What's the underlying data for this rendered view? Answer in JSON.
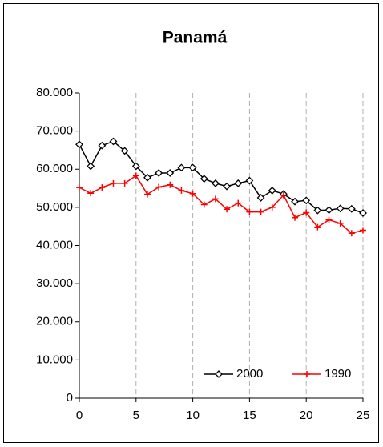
{
  "chart_data": {
    "type": "line",
    "title": "Panamá",
    "x": [
      0,
      1,
      2,
      3,
      4,
      5,
      6,
      7,
      8,
      9,
      10,
      11,
      12,
      13,
      14,
      15,
      16,
      17,
      18,
      19,
      20,
      21,
      22,
      23,
      24,
      25
    ],
    "series": [
      {
        "name": "2000",
        "color": "#000000",
        "marker": "diamond",
        "values": [
          66500,
          60800,
          66200,
          67300,
          64800,
          60800,
          57800,
          59000,
          59000,
          60400,
          60400,
          57500,
          56300,
          55500,
          56300,
          57000,
          52500,
          54400,
          53500,
          51500,
          51800,
          49200,
          49300,
          49700,
          49600,
          48500
        ]
      },
      {
        "name": "1990",
        "color": "#ff0000",
        "marker": "plus",
        "values": [
          55200,
          53700,
          55200,
          56300,
          56300,
          58300,
          53400,
          55300,
          55900,
          54400,
          53600,
          50700,
          52200,
          49500,
          51100,
          48800,
          48800,
          50000,
          53200,
          47300,
          48600,
          44800,
          46700,
          45800,
          43200,
          44000
        ]
      }
    ],
    "xlim": [
      0,
      25
    ],
    "xticks": [
      0,
      5,
      10,
      15,
      20,
      25
    ],
    "ylim": [
      0,
      80000
    ],
    "yticks": [
      0,
      {
        "value": 10000,
        "label": "10.000"
      },
      {
        "value": 20000,
        "label": "20.000"
      },
      {
        "value": 30000,
        "label": "30.000"
      },
      {
        "value": 40000,
        "label": "40.000"
      },
      {
        "value": 50000,
        "label": "50.000"
      },
      {
        "value": 60000,
        "label": "60.000"
      },
      {
        "value": 70000,
        "label": "70.000"
      },
      {
        "value": 80000,
        "label": "80.000"
      }
    ],
    "grid": "x",
    "legend": "lower right"
  }
}
